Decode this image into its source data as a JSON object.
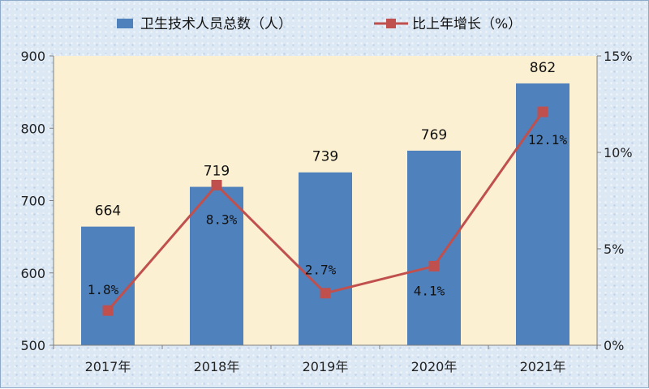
{
  "chart_data": {
    "type": "bar",
    "categories": [
      "2017年",
      "2018年",
      "2019年",
      "2020年",
      "2021年"
    ],
    "series": [
      {
        "name": "卫生技术人员总数（人）",
        "type": "bar",
        "axis": "left",
        "values": [
          664,
          719,
          739,
          769,
          862
        ],
        "labels": [
          "664",
          "719",
          "739",
          "769",
          "862"
        ],
        "color": "#4f81bd"
      },
      {
        "name": "比上年增长（%）",
        "type": "line",
        "axis": "right",
        "values": [
          1.8,
          8.3,
          2.7,
          4.1,
          12.1
        ],
        "labels": [
          "1.8%",
          "8.3%",
          "2.7%",
          "4.1%",
          "12.1%"
        ],
        "color": "#c0504d"
      }
    ],
    "y_left": {
      "min": 500,
      "max": 900,
      "ticks": [
        "500",
        "600",
        "700",
        "800",
        "900"
      ]
    },
    "y_right": {
      "min": 0,
      "max": 15,
      "ticks": [
        "0%",
        "5%",
        "10%",
        "15%"
      ]
    },
    "plot_background": "#fcf0d2",
    "grid": false,
    "legend_position": "top"
  }
}
